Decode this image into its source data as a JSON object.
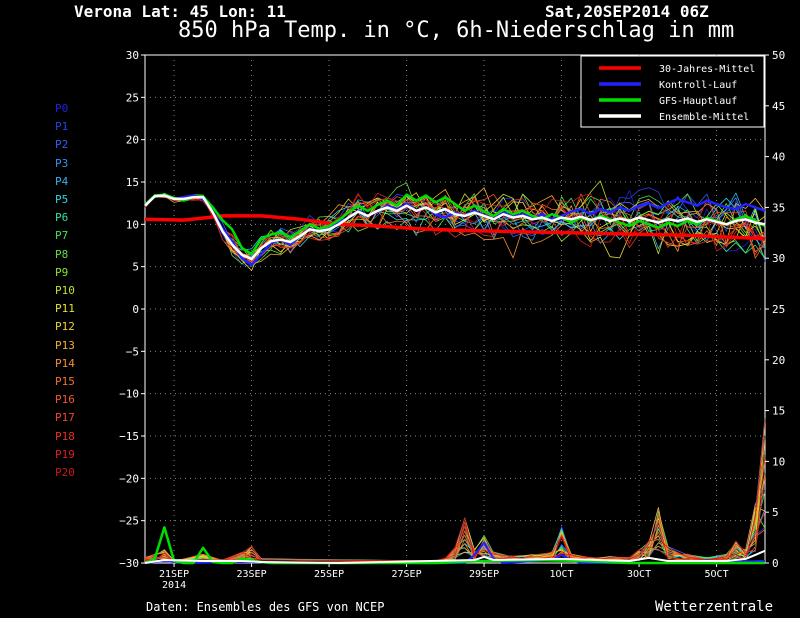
{
  "header": {
    "location": "Verona  Lat: 45 Lon: 11",
    "run": "Sat,20SEP2014 06Z",
    "title": "850 hPa Temp. in °C, 6h-Niederschlag in mm"
  },
  "footer": {
    "source": "Daten: Ensembles des GFS von NCEP",
    "brand": "Wetterzentrale"
  },
  "legend": [
    {
      "label": "30-Jahres-Mittel",
      "color": "#ff0000"
    },
    {
      "label": "Kontroll-Lauf",
      "color": "#2222ff"
    },
    {
      "label": "GFS-Hauptlauf",
      "color": "#00dd00"
    },
    {
      "label": "Ensemble-Mittel",
      "color": "#ffffff"
    }
  ],
  "members": [
    {
      "label": "P0",
      "color": "#2020e0"
    },
    {
      "label": "P1",
      "color": "#2840e8"
    },
    {
      "label": "P2",
      "color": "#3060f0"
    },
    {
      "label": "P3",
      "color": "#3090f0"
    },
    {
      "label": "P4",
      "color": "#30b0f0"
    },
    {
      "label": "P5",
      "color": "#30d0e0"
    },
    {
      "label": "P6",
      "color": "#30e0a0"
    },
    {
      "label": "P7",
      "color": "#40e060"
    },
    {
      "label": "P8",
      "color": "#60e040"
    },
    {
      "label": "P9",
      "color": "#90e030"
    },
    {
      "label": "P10",
      "color": "#c0e030"
    },
    {
      "label": "P11",
      "color": "#e0e030"
    },
    {
      "label": "P12",
      "color": "#f0d030"
    },
    {
      "label": "P13",
      "color": "#f0b030"
    },
    {
      "label": "P14",
      "color": "#f09030"
    },
    {
      "label": "P15",
      "color": "#f07030"
    },
    {
      "label": "P16",
      "color": "#f05830"
    },
    {
      "label": "P17",
      "color": "#f04828"
    },
    {
      "label": "P18",
      "color": "#e83020"
    },
    {
      "label": "P19",
      "color": "#e02020"
    },
    {
      "label": "P20",
      "color": "#c81818"
    }
  ],
  "chart_data": {
    "type": "line",
    "x_unit": "6h steps from 20SEP2014 06Z",
    "xlim": [
      0,
      64
    ],
    "ylim_left": [
      -30,
      30
    ],
    "ylim_right": [
      0,
      50
    ],
    "yticks_left": [
      30,
      25,
      20,
      15,
      10,
      5,
      0,
      -5,
      -10,
      -15,
      -20,
      -25,
      -30
    ],
    "yticks_right": [
      50,
      45,
      40,
      35,
      30,
      25,
      20,
      15,
      10,
      5,
      0
    ],
    "xticks": [
      {
        "x": 3,
        "label": "21SEP",
        "sub": "2014"
      },
      {
        "x": 11,
        "label": "23SEP"
      },
      {
        "x": 19,
        "label": "25SEP"
      },
      {
        "x": 27,
        "label": "27SEP"
      },
      {
        "x": 35,
        "label": "29SEP"
      },
      {
        "x": 43,
        "label": "1OCT"
      },
      {
        "x": 51,
        "label": "3OCT"
      },
      {
        "x": 59,
        "label": "5OCT"
      }
    ],
    "grid": true,
    "legend_position": "top-right",
    "temperature": {
      "climate_mean": [
        [
          0,
          10.6
        ],
        [
          4,
          10.5
        ],
        [
          8,
          11.0
        ],
        [
          12,
          11.0
        ],
        [
          16,
          10.6
        ],
        [
          20,
          10.0
        ],
        [
          24,
          9.8
        ],
        [
          28,
          9.5
        ],
        [
          32,
          9.3
        ],
        [
          36,
          9.2
        ],
        [
          40,
          9.1
        ],
        [
          44,
          9.0
        ],
        [
          48,
          8.9
        ],
        [
          52,
          8.8
        ],
        [
          56,
          8.7
        ],
        [
          60,
          8.5
        ],
        [
          64,
          8.3
        ]
      ],
      "control_run": [
        [
          0,
          12.2
        ],
        [
          1,
          13.3
        ],
        [
          2,
          13.4
        ],
        [
          3,
          13.0
        ],
        [
          4,
          13.2
        ],
        [
          5,
          13.4
        ],
        [
          6,
          13.0
        ],
        [
          7,
          11.5
        ],
        [
          8,
          9.5
        ],
        [
          9,
          8.0
        ],
        [
          10,
          6.0
        ],
        [
          11,
          5.2
        ],
        [
          12,
          6.5
        ],
        [
          13,
          7.8
        ],
        [
          14,
          8.2
        ],
        [
          15,
          7.6
        ],
        [
          16,
          8.6
        ],
        [
          17,
          9.5
        ],
        [
          18,
          9.2
        ],
        [
          19,
          9.5
        ],
        [
          20,
          10.2
        ],
        [
          21,
          10.8
        ],
        [
          22,
          11.6
        ],
        [
          23,
          11.0
        ],
        [
          24,
          11.5
        ],
        [
          25,
          12.2
        ],
        [
          26,
          11.8
        ],
        [
          27,
          12.4
        ],
        [
          28,
          11.6
        ],
        [
          29,
          12.0
        ],
        [
          30,
          11.2
        ],
        [
          31,
          10.8
        ],
        [
          32,
          11.4
        ],
        [
          33,
          11.0
        ],
        [
          34,
          11.6
        ],
        [
          35,
          11.1
        ],
        [
          36,
          10.6
        ],
        [
          37,
          11.4
        ],
        [
          38,
          10.9
        ],
        [
          39,
          11.2
        ],
        [
          40,
          10.7
        ],
        [
          41,
          11.2
        ],
        [
          42,
          10.6
        ],
        [
          43,
          11.0
        ],
        [
          44,
          11.5
        ],
        [
          45,
          11.8
        ],
        [
          46,
          11.2
        ],
        [
          47,
          11.8
        ],
        [
          48,
          11.4
        ],
        [
          49,
          12.0
        ],
        [
          50,
          11.6
        ],
        [
          51,
          12.2
        ],
        [
          52,
          12.5
        ],
        [
          53,
          11.9
        ],
        [
          54,
          12.5
        ],
        [
          55,
          13.0
        ],
        [
          56,
          12.6
        ],
        [
          57,
          12.2
        ],
        [
          58,
          12.8
        ],
        [
          59,
          12.4
        ],
        [
          60,
          12.0
        ],
        [
          61,
          11.8
        ],
        [
          62,
          12.4
        ],
        [
          63,
          12.0
        ],
        [
          64,
          11.6
        ]
      ],
      "gfs_main": [
        [
          0,
          12.3
        ],
        [
          1,
          13.4
        ],
        [
          2,
          13.5
        ],
        [
          3,
          13.1
        ],
        [
          4,
          12.8
        ],
        [
          5,
          13.2
        ],
        [
          6,
          13.3
        ],
        [
          7,
          12.0
        ],
        [
          8,
          10.5
        ],
        [
          9,
          9.4
        ],
        [
          10,
          7.2
        ],
        [
          11,
          6.5
        ],
        [
          12,
          8.3
        ],
        [
          13,
          8.8
        ],
        [
          14,
          9.0
        ],
        [
          15,
          8.5
        ],
        [
          16,
          9.2
        ],
        [
          17,
          10.0
        ],
        [
          18,
          9.5
        ],
        [
          19,
          9.8
        ],
        [
          20,
          10.5
        ],
        [
          21,
          11.4
        ],
        [
          22,
          12.2
        ],
        [
          23,
          11.6
        ],
        [
          24,
          12.3
        ],
        [
          25,
          12.8
        ],
        [
          26,
          12.2
        ],
        [
          27,
          13.5
        ],
        [
          28,
          12.8
        ],
        [
          29,
          13.4
        ],
        [
          30,
          12.6
        ],
        [
          31,
          13.2
        ],
        [
          32,
          12.4
        ],
        [
          33,
          11.6
        ],
        [
          34,
          12.2
        ],
        [
          35,
          11.5
        ],
        [
          36,
          11.0
        ],
        [
          37,
          11.8
        ],
        [
          38,
          11.2
        ],
        [
          39,
          11.6
        ],
        [
          40,
          11.0
        ],
        [
          41,
          10.6
        ],
        [
          42,
          11.2
        ],
        [
          43,
          10.8
        ],
        [
          44,
          10.2
        ],
        [
          45,
          10.8
        ],
        [
          46,
          10.4
        ],
        [
          47,
          11.0
        ],
        [
          48,
          10.6
        ],
        [
          49,
          10.2
        ],
        [
          50,
          9.8
        ],
        [
          51,
          10.4
        ],
        [
          52,
          10.0
        ],
        [
          53,
          9.6
        ],
        [
          54,
          10.2
        ],
        [
          55,
          9.8
        ],
        [
          56,
          10.4
        ],
        [
          57,
          10.0
        ],
        [
          58,
          10.8
        ],
        [
          59,
          10.4
        ],
        [
          60,
          10.0
        ],
        [
          61,
          10.6
        ],
        [
          62,
          11.0
        ],
        [
          63,
          10.4
        ],
        [
          64,
          9.8
        ]
      ],
      "ensemble_mean": [
        [
          0,
          12.2
        ],
        [
          1,
          13.3
        ],
        [
          2,
          13.4
        ],
        [
          3,
          13.0
        ],
        [
          4,
          13.0
        ],
        [
          5,
          13.2
        ],
        [
          6,
          13.2
        ],
        [
          7,
          11.4
        ],
        [
          8,
          9.2
        ],
        [
          9,
          7.6
        ],
        [
          10,
          6.4
        ],
        [
          11,
          5.9
        ],
        [
          12,
          7.2
        ],
        [
          13,
          8.0
        ],
        [
          14,
          8.2
        ],
        [
          15,
          7.9
        ],
        [
          16,
          8.6
        ],
        [
          17,
          9.4
        ],
        [
          18,
          9.2
        ],
        [
          19,
          9.4
        ],
        [
          20,
          10.0
        ],
        [
          21,
          10.8
        ],
        [
          22,
          11.5
        ],
        [
          23,
          11.0
        ],
        [
          24,
          11.6
        ],
        [
          25,
          12.0
        ],
        [
          26,
          11.6
        ],
        [
          27,
          12.2
        ],
        [
          28,
          11.6
        ],
        [
          29,
          12.0
        ],
        [
          30,
          11.4
        ],
        [
          31,
          11.8
        ],
        [
          32,
          11.2
        ],
        [
          33,
          11.0
        ],
        [
          34,
          11.4
        ],
        [
          35,
          11.0
        ],
        [
          36,
          10.6
        ],
        [
          37,
          11.2
        ],
        [
          38,
          10.8
        ],
        [
          39,
          11.0
        ],
        [
          40,
          10.6
        ],
        [
          41,
          10.8
        ],
        [
          42,
          10.4
        ],
        [
          43,
          10.8
        ],
        [
          44,
          10.6
        ],
        [
          45,
          10.9
        ],
        [
          46,
          10.5
        ],
        [
          47,
          10.8
        ],
        [
          48,
          10.4
        ],
        [
          49,
          10.7
        ],
        [
          50,
          10.4
        ],
        [
          51,
          10.8
        ],
        [
          52,
          10.5
        ],
        [
          53,
          10.2
        ],
        [
          54,
          10.6
        ],
        [
          55,
          10.4
        ],
        [
          56,
          10.7
        ],
        [
          57,
          10.3
        ],
        [
          58,
          10.6
        ],
        [
          59,
          10.3
        ],
        [
          60,
          10.0
        ],
        [
          61,
          10.4
        ],
        [
          62,
          10.6
        ],
        [
          63,
          10.2
        ],
        [
          64,
          10.0
        ]
      ]
    },
    "precipitation": {
      "gfs_main": [
        [
          0,
          0
        ],
        [
          1,
          0.4
        ],
        [
          2,
          3.5
        ],
        [
          3,
          0.2
        ],
        [
          4,
          0
        ],
        [
          5,
          0
        ],
        [
          6,
          1.5
        ],
        [
          7,
          0.1
        ],
        [
          8,
          0
        ],
        [
          9,
          0
        ],
        [
          10,
          0.4
        ],
        [
          11,
          0.3
        ],
        [
          12,
          0.1
        ],
        [
          13,
          0
        ],
        [
          14,
          0
        ],
        [
          15,
          0
        ],
        [
          16,
          0
        ],
        [
          17,
          0
        ],
        [
          18,
          0
        ],
        [
          19,
          0
        ],
        [
          20,
          0
        ],
        [
          25,
          0
        ],
        [
          30,
          0
        ],
        [
          35,
          0.2
        ],
        [
          40,
          0.3
        ],
        [
          45,
          0.2
        ],
        [
          50,
          0
        ],
        [
          55,
          0
        ],
        [
          60,
          0
        ],
        [
          64,
          0
        ]
      ],
      "control_run": [
        [
          0,
          0
        ],
        [
          2,
          0.2
        ],
        [
          4,
          0
        ],
        [
          10,
          0.1
        ],
        [
          20,
          0
        ],
        [
          33,
          0
        ],
        [
          34,
          0.8
        ],
        [
          35,
          2.0
        ],
        [
          36,
          0.4
        ],
        [
          37,
          0
        ],
        [
          42,
          0.3
        ],
        [
          43,
          0.8
        ],
        [
          44,
          0.3
        ],
        [
          45,
          0
        ],
        [
          55,
          0
        ],
        [
          64,
          0.2
        ]
      ],
      "ensemble_mean": [
        [
          0,
          0
        ],
        [
          2,
          0.3
        ],
        [
          6,
          0.2
        ],
        [
          10,
          0.2
        ],
        [
          12,
          0.1
        ],
        [
          20,
          0
        ],
        [
          34,
          0.3
        ],
        [
          35,
          0.6
        ],
        [
          36,
          0.3
        ],
        [
          43,
          0.4
        ],
        [
          50,
          0.2
        ],
        [
          52,
          0.5
        ],
        [
          54,
          0.2
        ],
        [
          60,
          0.2
        ],
        [
          62,
          0.4
        ],
        [
          63,
          0.8
        ],
        [
          64,
          1.2
        ]
      ],
      "member_peaks": [
        [
          0,
          0.5
        ],
        [
          1,
          0.8
        ],
        [
          2,
          1.2
        ],
        [
          3,
          0.3
        ],
        [
          6,
          0.8
        ],
        [
          8,
          0.3
        ],
        [
          10,
          1.0
        ],
        [
          11,
          1.6
        ],
        [
          12,
          0.4
        ],
        [
          30,
          0.2
        ],
        [
          31,
          0.8
        ],
        [
          32,
          1.5
        ],
        [
          33,
          4.2
        ],
        [
          34,
          1.2
        ],
        [
          35,
          2.5
        ],
        [
          36,
          1.0
        ],
        [
          38,
          0.6
        ],
        [
          40,
          0.8
        ],
        [
          42,
          1.0
        ],
        [
          43,
          3.8
        ],
        [
          44,
          0.8
        ],
        [
          46,
          0.5
        ],
        [
          48,
          0.6
        ],
        [
          50,
          0.5
        ],
        [
          51,
          1.2
        ],
        [
          52,
          2.0
        ],
        [
          53,
          5.0
        ],
        [
          54,
          1.5
        ],
        [
          56,
          0.8
        ],
        [
          58,
          0.5
        ],
        [
          60,
          0.8
        ],
        [
          61,
          2.0
        ],
        [
          62,
          1.2
        ],
        [
          63,
          5.5
        ],
        [
          64,
          14.0
        ]
      ]
    }
  }
}
